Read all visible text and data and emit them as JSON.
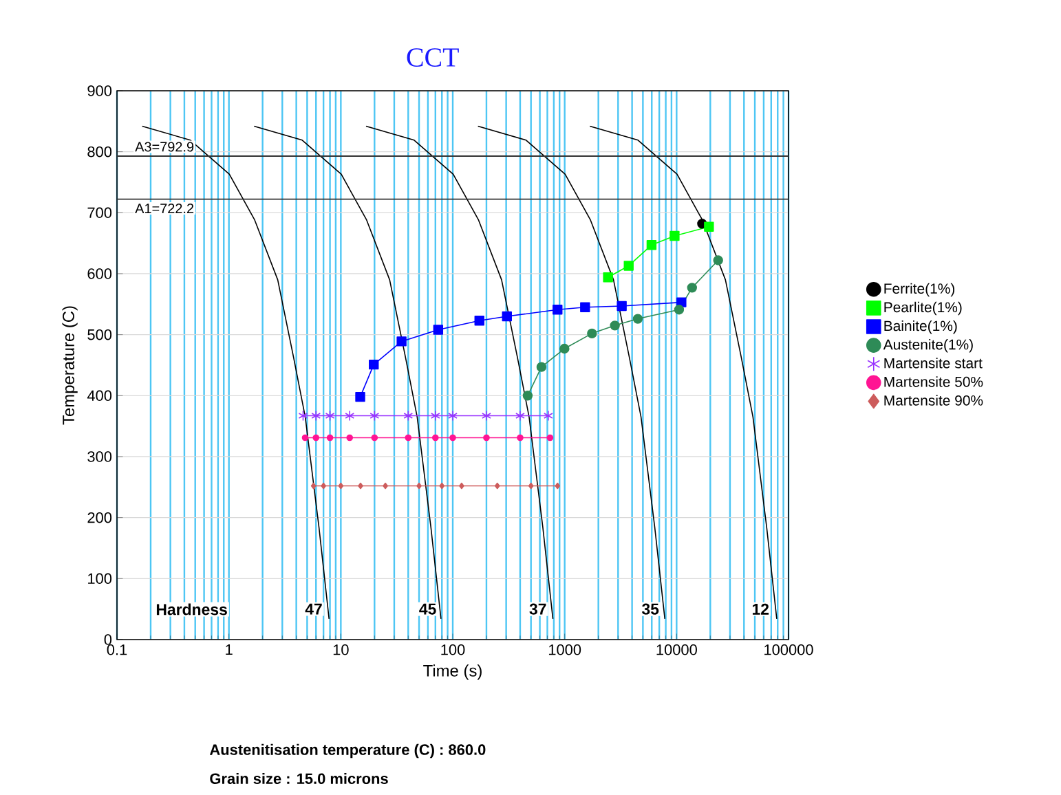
{
  "chart_data": {
    "type": "line",
    "title": "CCT",
    "xlabel": "Time (s)",
    "ylabel": "Temperature (C)",
    "log": "x",
    "xlim": [
      0.1,
      100000
    ],
    "ylim": [
      0,
      900
    ],
    "xticks": [
      0.1,
      1,
      10,
      100,
      1000,
      10000,
      100000
    ],
    "yticks": [
      0,
      100,
      200,
      300,
      400,
      500,
      600,
      700,
      800,
      900
    ],
    "grid": true,
    "legend": "right",
    "ref_lines": [
      {
        "axis": "y",
        "value": 792.9,
        "label": "A3=792.9",
        "color": "#333333"
      },
      {
        "axis": "y",
        "value": 722.2,
        "label": "A1=722.2",
        "color": "#333333"
      }
    ],
    "annotations": [
      "Hardness",
      {
        "text": "47",
        "x": 7.1,
        "y": 50
      },
      {
        "text": "45",
        "x": 74,
        "y": 50
      },
      {
        "text": "37",
        "x": 714,
        "y": 50
      },
      {
        "text": "35",
        "x": 7220,
        "y": 50
      },
      {
        "text": "12",
        "x": 69600,
        "y": 50
      },
      "Austenitisation temperature (C) : 860.0",
      "Grain size : 15.0 microns"
    ],
    "series": [
      {
        "type": "line",
        "color": "#000000",
        "marker": "none",
        "x": [
          0.168,
          0.452,
          1.01,
          1.7,
          2.73,
          3.79,
          4.81,
          6.38,
          7.85
        ],
        "values": [
          842,
          819,
          763,
          688,
          590,
          462,
          365,
          184,
          34
        ]
      },
      {
        "type": "line",
        "color": "#000000",
        "marker": "none",
        "x": [
          1.68,
          4.52,
          10.1,
          17.0,
          27.3,
          37.9,
          48.1,
          63.8,
          78.5
        ],
        "values": [
          842,
          819,
          763,
          688,
          590,
          462,
          365,
          184,
          34
        ]
      },
      {
        "type": "line",
        "color": "#000000",
        "marker": "none",
        "x": [
          16.8,
          45.2,
          101,
          170,
          273,
          379,
          481,
          638,
          785
        ],
        "values": [
          842,
          819,
          763,
          688,
          590,
          462,
          365,
          184,
          34
        ]
      },
      {
        "type": "line",
        "color": "#000000",
        "marker": "none",
        "x": [
          168,
          452,
          1010,
          1700,
          2730,
          3790,
          4810,
          6380,
          7850
        ],
        "values": [
          842,
          819,
          763,
          688,
          590,
          462,
          365,
          184,
          34
        ]
      },
      {
        "type": "line",
        "color": "#000000",
        "marker": "none",
        "x": [
          1680,
          4520,
          10100,
          17000,
          27300,
          37900,
          48100,
          63800,
          78500
        ],
        "values": [
          842,
          819,
          763,
          688,
          590,
          462,
          365,
          184,
          34
        ]
      },
      {
        "name": "Ferrite(1%)",
        "type": "scatter",
        "color": "#000000",
        "marker": "circle",
        "x": [
          16900
        ],
        "values": [
          682
        ]
      },
      {
        "name": "Pearlite(1%)",
        "color": "#00ff00",
        "marker": "square",
        "x": [
          2438,
          3733,
          5970,
          9590,
          19450
        ],
        "values": [
          594,
          613,
          647,
          662,
          677
        ]
      },
      {
        "name": "Bainite(1%)",
        "color": "#0000ff",
        "marker": "square",
        "x": [
          14.9,
          19.7,
          34.9,
          74.1,
          173,
          305,
          863,
          1521,
          3236,
          11040
        ],
        "values": [
          398,
          451,
          489,
          508,
          523,
          530,
          541,
          545,
          547,
          553
        ]
      },
      {
        "name": "Austenite(1%)",
        "color": "#2e8b57",
        "marker": "circle",
        "x": [
          467,
          620,
          995,
          1753,
          2810,
          4500,
          10520,
          13740,
          23500
        ],
        "values": [
          400,
          447,
          477,
          502,
          515,
          526,
          541,
          577,
          622
        ]
      },
      {
        "name": "Martensite start",
        "color": "#9933ff",
        "marker": "cross",
        "x": [
          4.6,
          6,
          8,
          12,
          20,
          40,
          70,
          100,
          200,
          400,
          714
        ],
        "values": [
          367,
          367,
          367,
          367,
          367,
          367,
          367,
          367,
          367,
          367,
          367
        ]
      },
      {
        "name": "Martensite 50%",
        "color": "#ff1493",
        "marker": "circle",
        "x": [
          4.8,
          6,
          8,
          12,
          20,
          40,
          70,
          100,
          200,
          400,
          740
        ],
        "values": [
          331,
          331,
          331,
          331,
          331,
          331,
          331,
          331,
          331,
          331,
          331
        ]
      },
      {
        "name": "Martensite 90%",
        "color": "#cd5c5c",
        "marker": "diamond",
        "x": [
          5.7,
          7,
          10,
          15,
          25,
          50,
          80,
          120,
          250,
          500,
          863
        ],
        "values": [
          252,
          252,
          252,
          252,
          252,
          252,
          252,
          252,
          252,
          252,
          252
        ]
      }
    ]
  }
}
